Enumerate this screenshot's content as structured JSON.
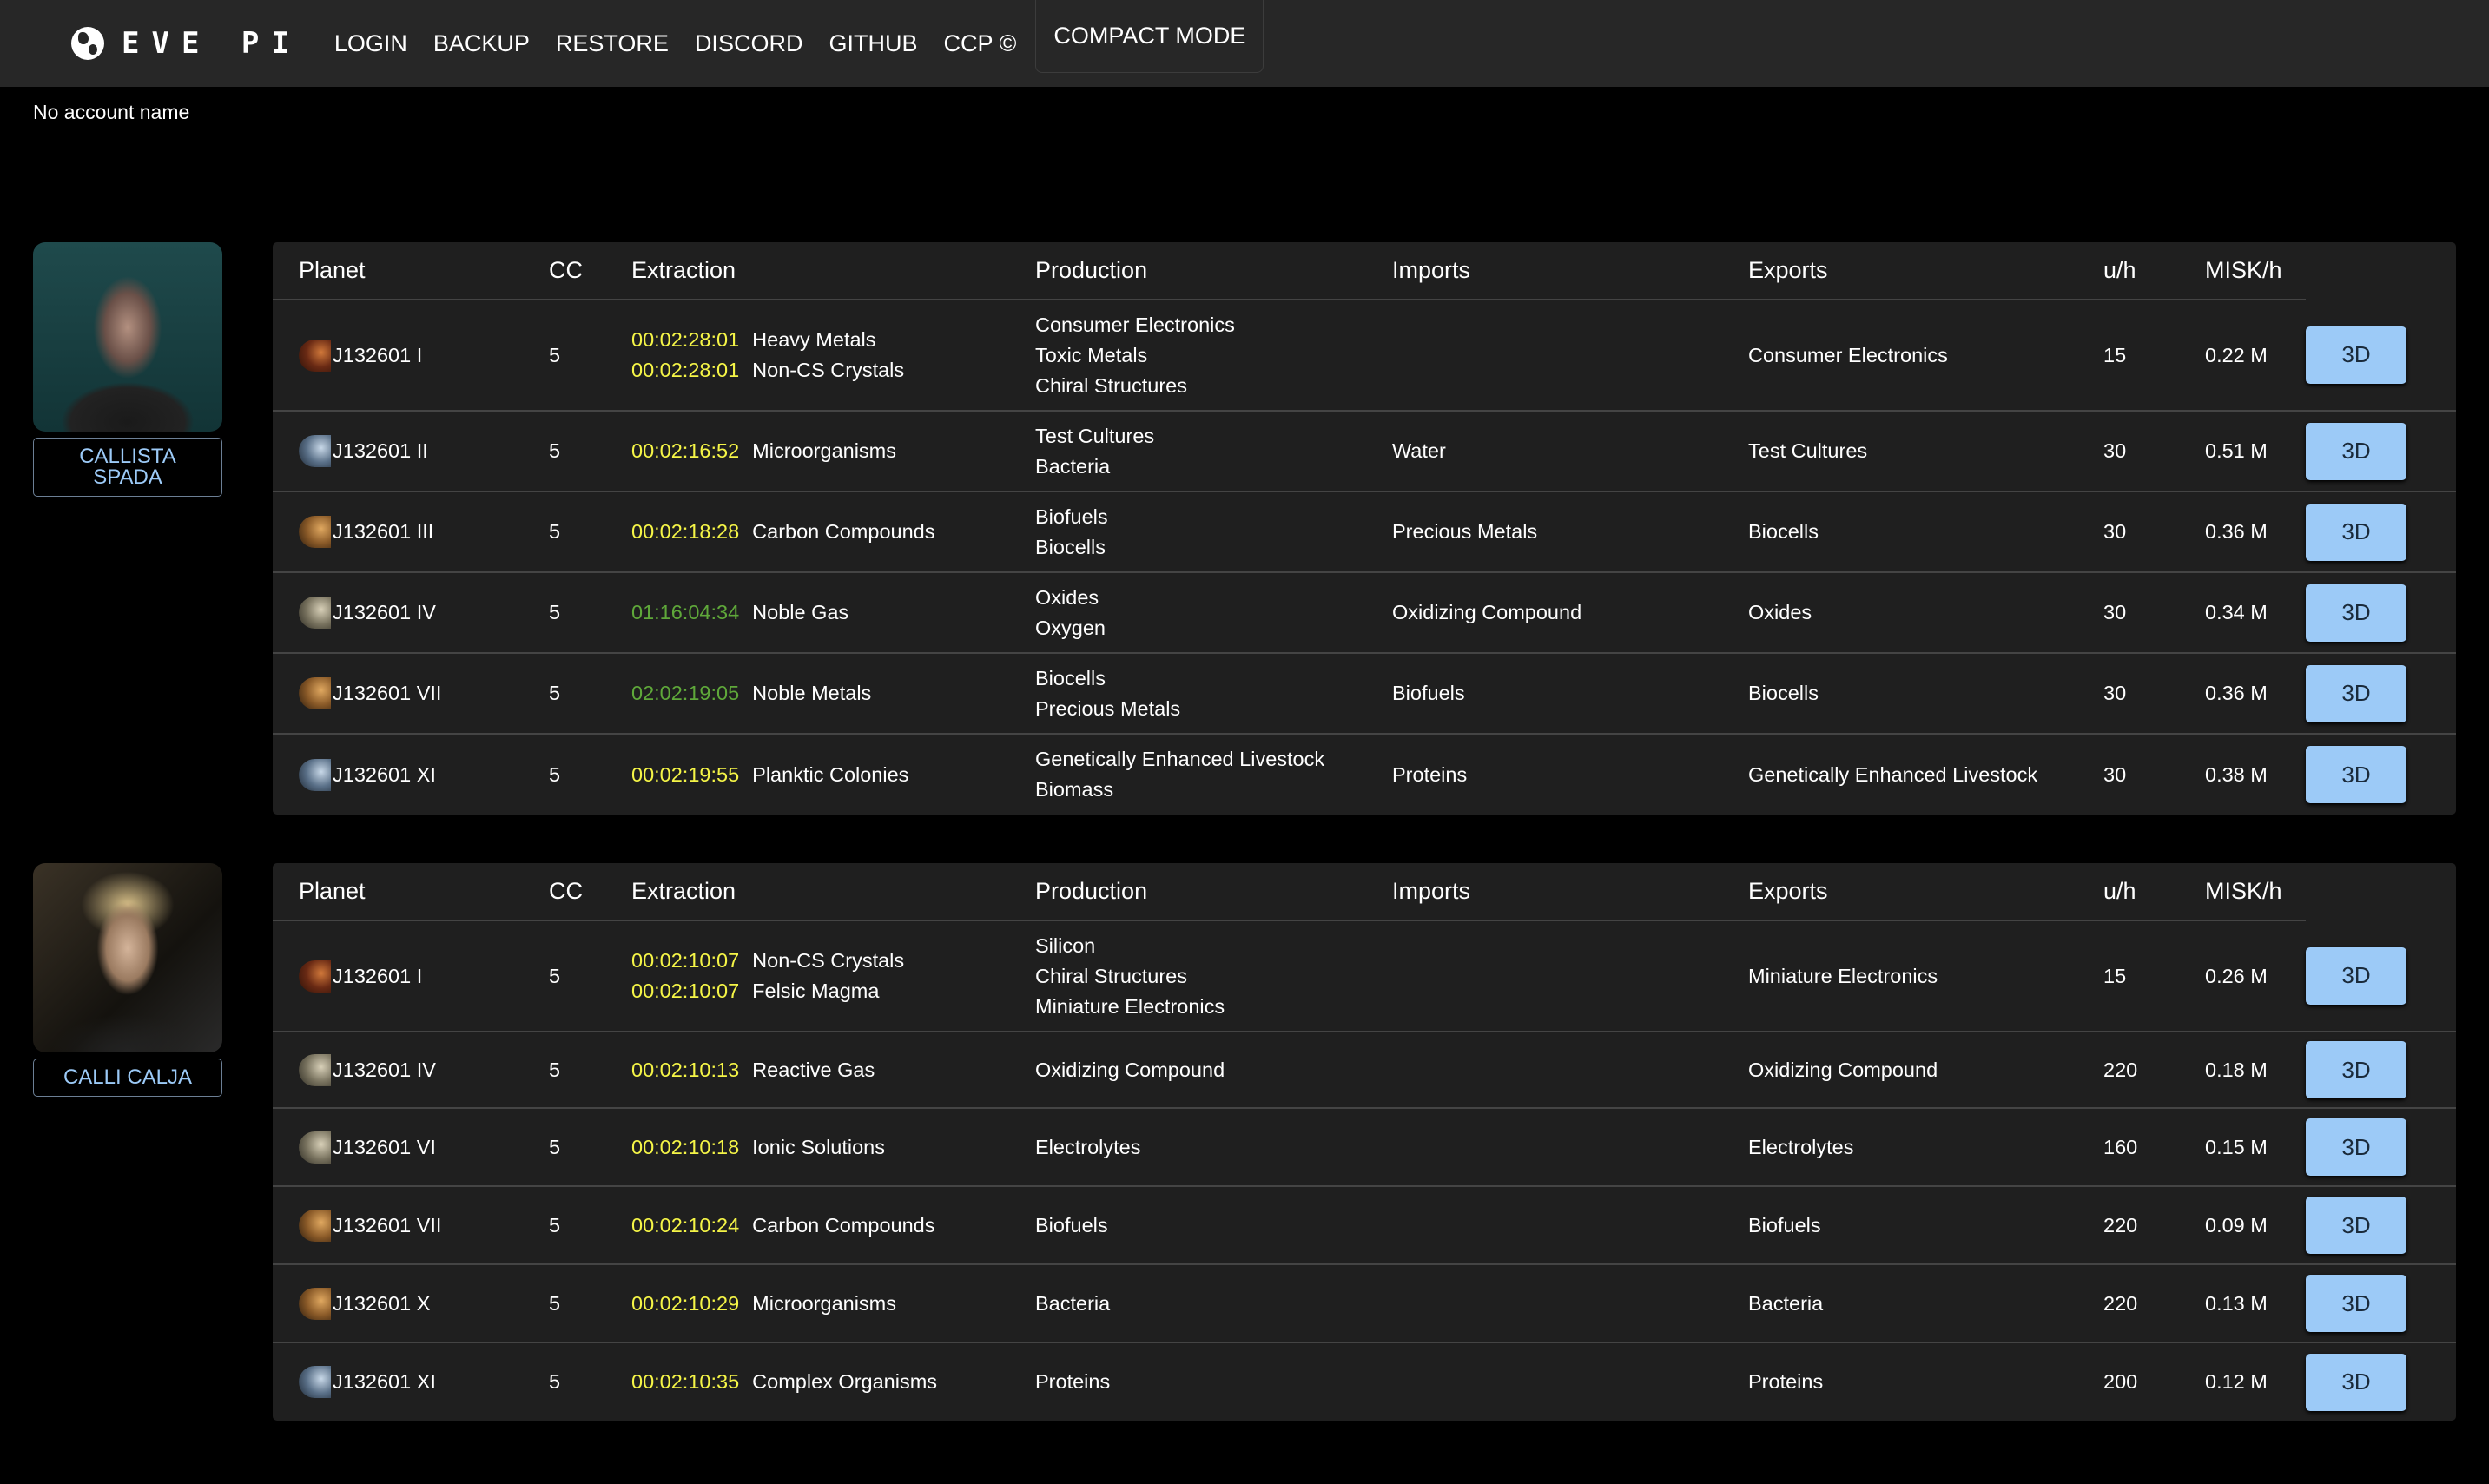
{
  "nav": {
    "logo": "EVE PI",
    "items": [
      "LOGIN",
      "BACKUP",
      "RESTORE",
      "DISCORD",
      "GITHUB",
      "CCP ©"
    ],
    "compact": "COMPACT MODE"
  },
  "account_name": "No account name",
  "colors": {
    "timer_warn": "#f5f547",
    "timer_ok": "#5fa83a",
    "button": "#9ccaf7",
    "char_name": "#9ccaf7"
  },
  "headers": [
    "Planet",
    "CC",
    "Extraction",
    "Production",
    "Imports",
    "Exports",
    "u/h",
    "MISK/h"
  ],
  "button_label": "3D",
  "characters": [
    {
      "name": "CALLISTA SPADA",
      "avatar": "female-dark-hair",
      "rows": [
        {
          "planet": "J132601 I",
          "type": "lava",
          "cc": "5",
          "extraction": [
            {
              "timer": "00:02:28:01",
              "status": "warn",
              "resource": "Heavy Metals"
            },
            {
              "timer": "00:02:28:01",
              "status": "warn",
              "resource": "Non-CS Crystals"
            }
          ],
          "production": [
            "Consumer Electronics",
            "Toxic Metals",
            "Chiral Structures"
          ],
          "imports": [],
          "exports": [
            "Consumer Electronics"
          ],
          "uh": "15",
          "misk": "0.22 M"
        },
        {
          "planet": "J132601 II",
          "type": "ice",
          "cc": "5",
          "extraction": [
            {
              "timer": "00:02:16:52",
              "status": "warn",
              "resource": "Microorganisms"
            }
          ],
          "production": [
            "Test Cultures",
            "Bacteria"
          ],
          "imports": [
            "Water"
          ],
          "exports": [
            "Test Cultures"
          ],
          "uh": "30",
          "misk": "0.51 M"
        },
        {
          "planet": "J132601 III",
          "type": "barren",
          "cc": "5",
          "extraction": [
            {
              "timer": "00:02:18:28",
              "status": "warn",
              "resource": "Carbon Compounds"
            }
          ],
          "production": [
            "Biofuels",
            "Biocells"
          ],
          "imports": [
            "Precious Metals"
          ],
          "exports": [
            "Biocells"
          ],
          "uh": "30",
          "misk": "0.36 M"
        },
        {
          "planet": "J132601 IV",
          "type": "gas",
          "cc": "5",
          "extraction": [
            {
              "timer": "01:16:04:34",
              "status": "ok",
              "resource": "Noble Gas"
            }
          ],
          "production": [
            "Oxides",
            "Oxygen"
          ],
          "imports": [
            "Oxidizing Compound"
          ],
          "exports": [
            "Oxides"
          ],
          "uh": "30",
          "misk": "0.34 M"
        },
        {
          "planet": "J132601 VII",
          "type": "barren",
          "cc": "5",
          "extraction": [
            {
              "timer": "02:02:19:05",
              "status": "ok",
              "resource": "Noble Metals"
            }
          ],
          "production": [
            "Biocells",
            "Precious Metals"
          ],
          "imports": [
            "Biofuels"
          ],
          "exports": [
            "Biocells"
          ],
          "uh": "30",
          "misk": "0.36 M"
        },
        {
          "planet": "J132601 XI",
          "type": "ice",
          "cc": "5",
          "extraction": [
            {
              "timer": "00:02:19:55",
              "status": "warn",
              "resource": "Planktic Colonies"
            }
          ],
          "production": [
            "Genetically Enhanced Livestock",
            "Biomass"
          ],
          "imports": [
            "Proteins"
          ],
          "exports": [
            "Genetically Enhanced Livestock"
          ],
          "uh": "30",
          "misk": "0.38 M"
        }
      ]
    },
    {
      "name": "CALLI CALJA",
      "avatar": "female-blonde",
      "rows": [
        {
          "planet": "J132601 I",
          "type": "lava",
          "cc": "5",
          "extraction": [
            {
              "timer": "00:02:10:07",
              "status": "warn",
              "resource": "Non-CS Crystals"
            },
            {
              "timer": "00:02:10:07",
              "status": "warn",
              "resource": "Felsic Magma"
            }
          ],
          "production": [
            "Silicon",
            "Chiral Structures",
            "Miniature Electronics"
          ],
          "imports": [],
          "exports": [
            "Miniature Electronics"
          ],
          "uh": "15",
          "misk": "0.26 M"
        },
        {
          "planet": "J132601 IV",
          "type": "gas",
          "cc": "5",
          "extraction": [
            {
              "timer": "00:02:10:13",
              "status": "warn",
              "resource": "Reactive Gas"
            }
          ],
          "production": [
            "Oxidizing Compound"
          ],
          "imports": [],
          "exports": [
            "Oxidizing Compound"
          ],
          "uh": "220",
          "misk": "0.18 M"
        },
        {
          "planet": "J132601 VI",
          "type": "gas",
          "cc": "5",
          "extraction": [
            {
              "timer": "00:02:10:18",
              "status": "warn",
              "resource": "Ionic Solutions"
            }
          ],
          "production": [
            "Electrolytes"
          ],
          "imports": [],
          "exports": [
            "Electrolytes"
          ],
          "uh": "160",
          "misk": "0.15 M"
        },
        {
          "planet": "J132601 VII",
          "type": "barren",
          "cc": "5",
          "extraction": [
            {
              "timer": "00:02:10:24",
              "status": "warn",
              "resource": "Carbon Compounds"
            }
          ],
          "production": [
            "Biofuels"
          ],
          "imports": [],
          "exports": [
            "Biofuels"
          ],
          "uh": "220",
          "misk": "0.09 M"
        },
        {
          "planet": "J132601 X",
          "type": "barren",
          "cc": "5",
          "extraction": [
            {
              "timer": "00:02:10:29",
              "status": "warn",
              "resource": "Microorganisms"
            }
          ],
          "production": [
            "Bacteria"
          ],
          "imports": [],
          "exports": [
            "Bacteria"
          ],
          "uh": "220",
          "misk": "0.13 M"
        },
        {
          "planet": "J132601 XI",
          "type": "ice",
          "cc": "5",
          "extraction": [
            {
              "timer": "00:02:10:35",
              "status": "warn",
              "resource": "Complex Organisms"
            }
          ],
          "production": [
            "Proteins"
          ],
          "imports": [],
          "exports": [
            "Proteins"
          ],
          "uh": "200",
          "misk": "0.12 M"
        }
      ]
    }
  ]
}
